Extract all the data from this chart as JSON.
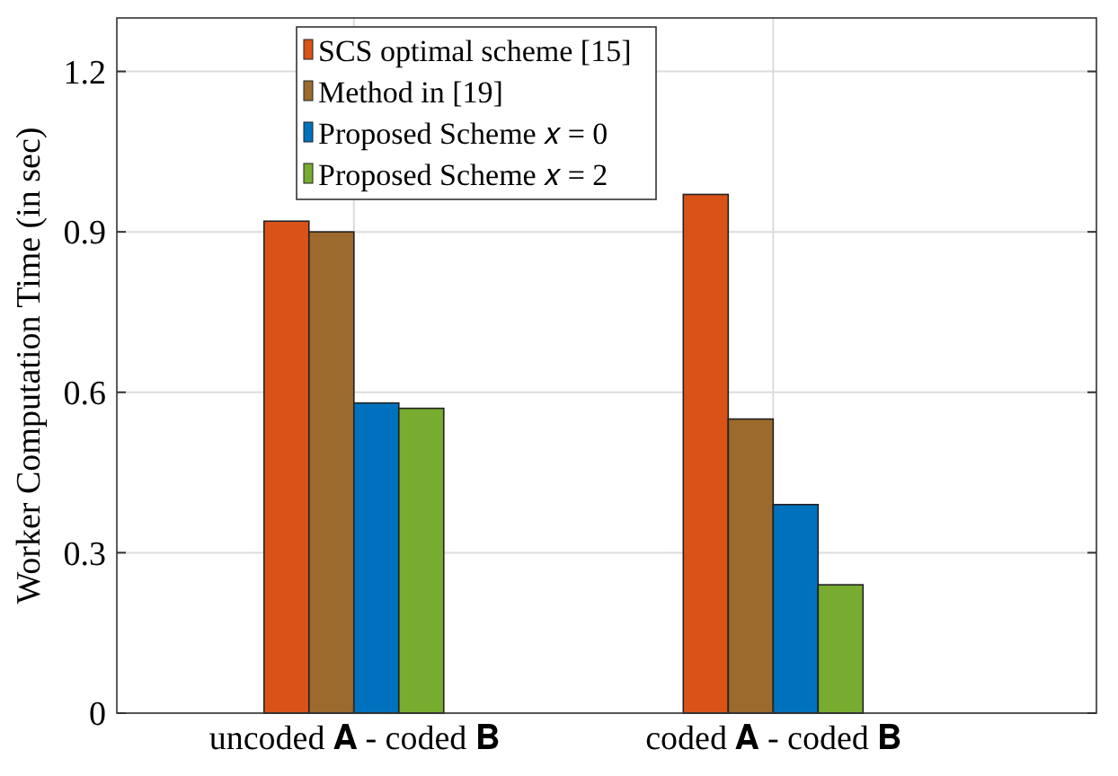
{
  "chart_data": {
    "type": "bar",
    "ylabel": "Worker Computation Time (in sec)",
    "categories": [
      "uncoded 𝐀 - coded 𝐁",
      "coded 𝐀 - coded 𝐁"
    ],
    "series": [
      {
        "name": "SCS optimal scheme [15]",
        "color": "#d95319",
        "values": [
          0.92,
          0.97
        ]
      },
      {
        "name": "Method in [19]",
        "color": "#9c6a2c",
        "values": [
          0.9,
          0.55
        ]
      },
      {
        "name": "Proposed Scheme 𝑥 = 0",
        "color": "#0072bd",
        "values": [
          0.58,
          0.39
        ]
      },
      {
        "name": "Proposed Scheme 𝑥 = 2",
        "color": "#77ac30",
        "values": [
          0.57,
          0.24
        ]
      }
    ],
    "ylim": [
      0,
      1.3
    ],
    "yticks": [
      0,
      0.3,
      0.6,
      0.9,
      1.2
    ],
    "grid": true,
    "legend": "top"
  }
}
